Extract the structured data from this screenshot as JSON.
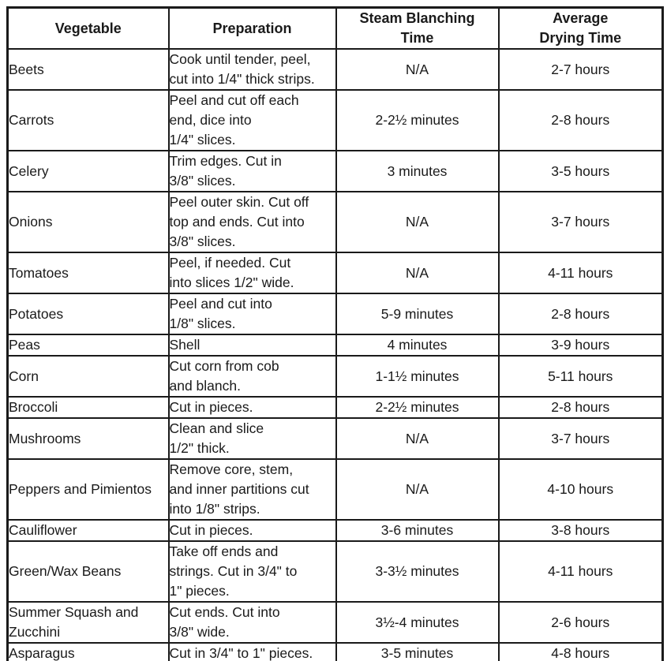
{
  "colors": {
    "ink": "#1a1a1a",
    "background": "#ffffff"
  },
  "table": {
    "headers": {
      "vegetable": "Vegetable",
      "preparation": "Preparation",
      "blanching": "Steam Blanching\nTime",
      "drying": "Average\nDrying Time"
    },
    "rows": [
      {
        "vegetable": "Beets",
        "preparation": "Cook until tender, peel,\ncut into 1/4\" thick strips.",
        "blanching": "N/A",
        "drying": "2-7 hours"
      },
      {
        "vegetable": "Carrots",
        "preparation": "Peel and cut off each\nend, dice into\n1/4\" slices.",
        "blanching": "2-2½ minutes",
        "drying": "2-8 hours"
      },
      {
        "vegetable": "Celery",
        "preparation": "Trim edges. Cut in\n3/8\" slices.",
        "blanching": "3 minutes",
        "drying": "3-5 hours"
      },
      {
        "vegetable": "Onions",
        "preparation": "Peel outer skin. Cut off\ntop and ends. Cut into\n3/8\" slices.",
        "blanching": "N/A",
        "drying": "3-7 hours"
      },
      {
        "vegetable": "Tomatoes",
        "preparation": "Peel, if needed. Cut\ninto slices 1/2\" wide.",
        "blanching": "N/A",
        "drying": "4-11 hours"
      },
      {
        "vegetable": "Potatoes",
        "preparation": "Peel and cut into\n1/8\" slices.",
        "blanching": "5-9 minutes",
        "drying": "2-8 hours"
      },
      {
        "vegetable": "Peas",
        "preparation": "Shell",
        "blanching": "4 minutes",
        "drying": "3-9 hours"
      },
      {
        "vegetable": "Corn",
        "preparation": "Cut corn from cob\nand blanch.",
        "blanching": "1-1½ minutes",
        "drying": "5-11 hours"
      },
      {
        "vegetable": "Broccoli",
        "preparation": "Cut in pieces.",
        "blanching": "2-2½ minutes",
        "drying": "2-8 hours"
      },
      {
        "vegetable": "Mushrooms",
        "preparation": "Clean and slice\n1/2\" thick.",
        "blanching": "N/A",
        "drying": "3-7 hours"
      },
      {
        "vegetable": "Peppers and Pimientos",
        "preparation": "Remove core, stem,\nand inner partitions cut\ninto 1/8\" strips.",
        "blanching": "N/A",
        "drying": "4-10 hours"
      },
      {
        "vegetable": "Cauliflower",
        "preparation": "Cut in pieces.",
        "blanching": "3-6 minutes",
        "drying": "3-8 hours"
      },
      {
        "vegetable": "Green/Wax Beans",
        "preparation": "Take off ends and\nstrings. Cut in 3/4\" to\n1\" pieces.",
        "blanching": "3-3½ minutes",
        "drying": "4-11 hours"
      },
      {
        "vegetable": "Summer Squash and\nZucchini",
        "preparation": "Cut ends. Cut into\n3/8\" wide.",
        "blanching": "3½-4 minutes",
        "drying": "2-6 hours"
      },
      {
        "vegetable": "Asparagus",
        "preparation": "Cut in 3/4\" to 1\" pieces.",
        "blanching": "3-5 minutes",
        "drying": "4-8 hours"
      }
    ]
  }
}
